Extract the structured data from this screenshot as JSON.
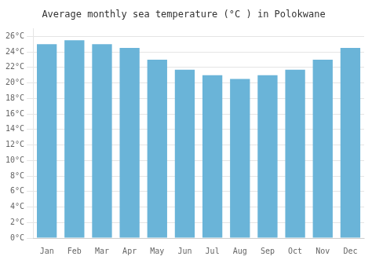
{
  "chart_data": {
    "type": "bar",
    "title": "Average monthly sea temperature (°C ) in Polokwane",
    "categories": [
      "Jan",
      "Feb",
      "Mar",
      "Apr",
      "May",
      "Jun",
      "Jul",
      "Aug",
      "Sep",
      "Oct",
      "Nov",
      "Dec"
    ],
    "values": [
      25.0,
      25.5,
      25.0,
      24.5,
      23.0,
      21.7,
      21.0,
      20.5,
      21.0,
      21.7,
      23.0,
      24.5
    ],
    "color": "#6ab4d8",
    "ylim": [
      0,
      27
    ],
    "yticks": [
      {
        "value": 0,
        "label": "0°C"
      },
      {
        "value": 2,
        "label": "2°C"
      },
      {
        "value": 4,
        "label": "4°C"
      },
      {
        "value": 6,
        "label": "6°C"
      },
      {
        "value": 8,
        "label": "8°C"
      },
      {
        "value": 10,
        "label": "10°C"
      },
      {
        "value": 12,
        "label": "12°C"
      },
      {
        "value": 14,
        "label": "14°C"
      },
      {
        "value": 16,
        "label": "16°C"
      },
      {
        "value": 18,
        "label": "18°C"
      },
      {
        "value": 20,
        "label": "20°C"
      },
      {
        "value": 22,
        "label": "22°C"
      },
      {
        "value": 24,
        "label": "24°C"
      },
      {
        "value": 26,
        "label": "26°C"
      }
    ],
    "grid": true
  }
}
